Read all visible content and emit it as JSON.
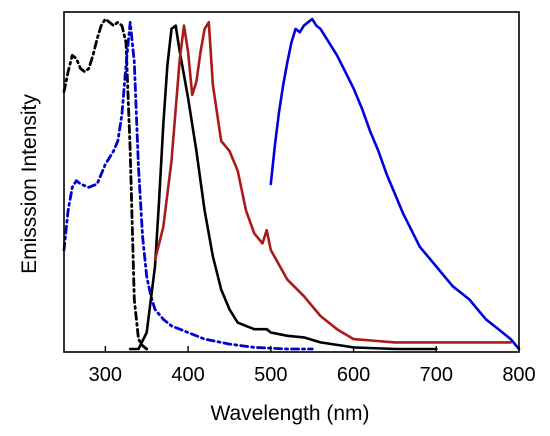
{
  "chart_data": {
    "type": "line",
    "title": "",
    "xlabel": "Wavelength (nm)",
    "ylabel": "Emisssion Intensity",
    "xlim": [
      250,
      800
    ],
    "ylim": [
      0,
      1
    ],
    "xticks": [
      300,
      400,
      500,
      600,
      700,
      800
    ],
    "xtick_labels": [
      "300",
      "400",
      "500",
      "600",
      "700",
      "800"
    ],
    "y_ticks_shown": false,
    "grid": false,
    "legend": "none",
    "series": [
      {
        "color": "#000000",
        "dash": "dash-dot",
        "x": [
          250,
          255,
          260,
          265,
          270,
          275,
          280,
          285,
          290,
          295,
          300,
          305,
          310,
          315,
          320,
          325,
          330,
          335,
          340,
          345,
          350
        ],
        "y": [
          0.78,
          0.84,
          0.89,
          0.88,
          0.85,
          0.84,
          0.85,
          0.89,
          0.94,
          0.98,
          1.0,
          0.99,
          0.98,
          0.99,
          0.98,
          0.93,
          0.6,
          0.15,
          0.03,
          0.01,
          0.0
        ]
      },
      {
        "color": "#0000cc",
        "dash": "dash-dot",
        "x": [
          250,
          255,
          260,
          265,
          270,
          280,
          290,
          300,
          310,
          315,
          320,
          325,
          330,
          335,
          340,
          345,
          350,
          355,
          360,
          370,
          380,
          400,
          420,
          450,
          480,
          520,
          550
        ],
        "y": [
          0.3,
          0.42,
          0.49,
          0.51,
          0.5,
          0.49,
          0.5,
          0.56,
          0.6,
          0.63,
          0.71,
          0.86,
          0.99,
          0.87,
          0.55,
          0.34,
          0.22,
          0.16,
          0.12,
          0.09,
          0.07,
          0.05,
          0.03,
          0.015,
          0.005,
          0.0,
          0.0
        ]
      },
      {
        "color": "#000000",
        "dash": "solid",
        "x": [
          330,
          340,
          350,
          360,
          365,
          370,
          375,
          380,
          385,
          390,
          395,
          400,
          410,
          420,
          430,
          440,
          450,
          455,
          460,
          470,
          480,
          490,
          495,
          500,
          520,
          540,
          560,
          600,
          650,
          700
        ],
        "y": [
          0.0,
          0.0,
          0.05,
          0.25,
          0.45,
          0.68,
          0.86,
          0.97,
          0.98,
          0.9,
          0.83,
          0.76,
          0.6,
          0.42,
          0.28,
          0.18,
          0.12,
          0.1,
          0.08,
          0.07,
          0.06,
          0.06,
          0.06,
          0.05,
          0.04,
          0.035,
          0.02,
          0.005,
          0.0,
          0.0
        ]
      },
      {
        "color": "#aa1a1a",
        "dash": "solid",
        "x": [
          360,
          370,
          380,
          390,
          395,
          400,
          405,
          410,
          415,
          420,
          425,
          430,
          440,
          450,
          460,
          470,
          480,
          490,
          495,
          500,
          520,
          540,
          560,
          580,
          600,
          650,
          700,
          750,
          790
        ],
        "y": [
          0.27,
          0.37,
          0.57,
          0.88,
          0.98,
          0.9,
          0.77,
          0.81,
          0.9,
          0.97,
          0.99,
          0.8,
          0.63,
          0.6,
          0.54,
          0.42,
          0.35,
          0.32,
          0.36,
          0.3,
          0.21,
          0.16,
          0.1,
          0.06,
          0.03,
          0.02,
          0.02,
          0.02,
          0.02
        ]
      },
      {
        "color": "#0000dd",
        "dash": "solid",
        "x": [
          500,
          505,
          510,
          515,
          520,
          525,
          530,
          535,
          540,
          545,
          550,
          555,
          560,
          570,
          580,
          590,
          600,
          610,
          620,
          630,
          640,
          650,
          660,
          670,
          680,
          690,
          700,
          710,
          720,
          730,
          740,
          750,
          760,
          770,
          780,
          790,
          800
        ],
        "y": [
          0.5,
          0.62,
          0.72,
          0.8,
          0.87,
          0.93,
          0.97,
          0.96,
          0.98,
          0.99,
          1.0,
          0.98,
          0.97,
          0.93,
          0.89,
          0.84,
          0.79,
          0.73,
          0.66,
          0.6,
          0.53,
          0.47,
          0.41,
          0.36,
          0.31,
          0.28,
          0.25,
          0.22,
          0.19,
          0.17,
          0.15,
          0.12,
          0.09,
          0.07,
          0.05,
          0.03,
          0.0
        ]
      }
    ]
  }
}
